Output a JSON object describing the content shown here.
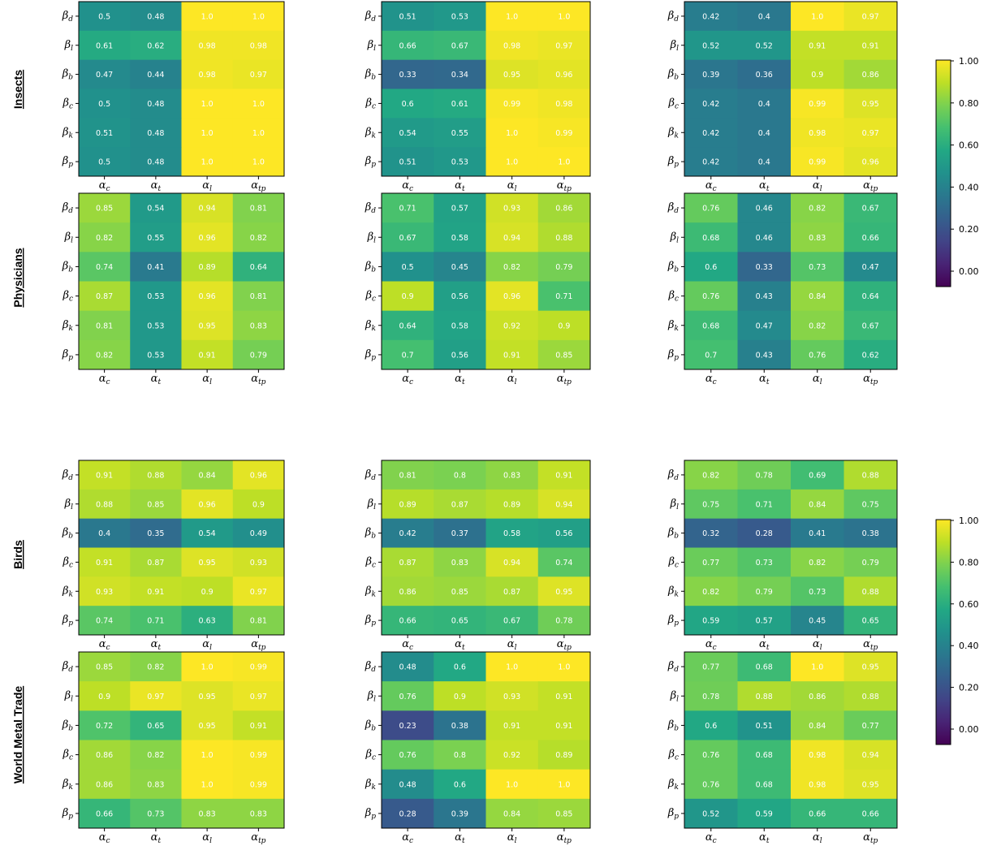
{
  "row_titles": [
    "Insects",
    "Physicians",
    "Birds",
    "World Metal Trade"
  ],
  "colorbar": {
    "colormap": "viridis",
    "range": [
      0,
      1
    ],
    "ticks": [
      "0.00",
      "0.20",
      "0.40",
      "0.60",
      "0.80",
      "1.00"
    ]
  },
  "chart_data": {
    "type": "heatmap",
    "layout": "4 datasets x 3 heatmaps",
    "x_ticks": [
      "α_c",
      "α_t",
      "α_l",
      "α_tp"
    ],
    "y_ticks": [
      "β_d",
      "β_l",
      "β_b",
      "β_c",
      "β_k",
      "β_p"
    ],
    "zlim": [
      0,
      1
    ],
    "panels": [
      {
        "dataset": "Insects",
        "column": 1,
        "values": [
          [
            "0.5",
            "0.48",
            "1.0",
            "1.0"
          ],
          [
            "0.61",
            "0.62",
            "0.98",
            "0.98"
          ],
          [
            "0.47",
            "0.44",
            "0.98",
            "0.97"
          ],
          [
            "0.5",
            "0.48",
            "1.0",
            "1.0"
          ],
          [
            "0.51",
            "0.48",
            "1.0",
            "1.0"
          ],
          [
            "0.5",
            "0.48",
            "1.0",
            "1.0"
          ]
        ]
      },
      {
        "dataset": "Insects",
        "column": 2,
        "values": [
          [
            "0.51",
            "0.53",
            "1.0",
            "1.0"
          ],
          [
            "0.66",
            "0.67",
            "0.98",
            "0.97"
          ],
          [
            "0.33",
            "0.34",
            "0.95",
            "0.96"
          ],
          [
            "0.6",
            "0.61",
            "0.99",
            "0.98"
          ],
          [
            "0.54",
            "0.55",
            "1.0",
            "0.99"
          ],
          [
            "0.51",
            "0.53",
            "1.0",
            "1.0"
          ]
        ]
      },
      {
        "dataset": "Insects",
        "column": 3,
        "values": [
          [
            "0.42",
            "0.4",
            "1.0",
            "0.97"
          ],
          [
            "0.52",
            "0.52",
            "0.91",
            "0.91"
          ],
          [
            "0.39",
            "0.36",
            "0.9",
            "0.86"
          ],
          [
            "0.42",
            "0.4",
            "0.99",
            "0.95"
          ],
          [
            "0.42",
            "0.4",
            "0.98",
            "0.97"
          ],
          [
            "0.42",
            "0.4",
            "0.99",
            "0.96"
          ]
        ]
      },
      {
        "dataset": "Physicians",
        "column": 1,
        "values": [
          [
            "0.85",
            "0.54",
            "0.94",
            "0.81"
          ],
          [
            "0.82",
            "0.55",
            "0.96",
            "0.82"
          ],
          [
            "0.74",
            "0.41",
            "0.89",
            "0.64"
          ],
          [
            "0.87",
            "0.53",
            "0.96",
            "0.81"
          ],
          [
            "0.81",
            "0.53",
            "0.95",
            "0.83"
          ],
          [
            "0.82",
            "0.53",
            "0.91",
            "0.79"
          ]
        ]
      },
      {
        "dataset": "Physicians",
        "column": 2,
        "values": [
          [
            "0.71",
            "0.57",
            "0.93",
            "0.86"
          ],
          [
            "0.67",
            "0.58",
            "0.94",
            "0.88"
          ],
          [
            "0.5",
            "0.45",
            "0.82",
            "0.79"
          ],
          [
            "0.9",
            "0.56",
            "0.96",
            "0.71"
          ],
          [
            "0.64",
            "0.58",
            "0.92",
            "0.9"
          ],
          [
            "0.7",
            "0.56",
            "0.91",
            "0.85"
          ]
        ]
      },
      {
        "dataset": "Physicians",
        "column": 3,
        "values": [
          [
            "0.76",
            "0.46",
            "0.82",
            "0.67"
          ],
          [
            "0.68",
            "0.46",
            "0.83",
            "0.66"
          ],
          [
            "0.6",
            "0.33",
            "0.73",
            "0.47"
          ],
          [
            "0.76",
            "0.43",
            "0.84",
            "0.64"
          ],
          [
            "0.68",
            "0.47",
            "0.82",
            "0.67"
          ],
          [
            "0.7",
            "0.43",
            "0.76",
            "0.62"
          ]
        ]
      },
      {
        "dataset": "Birds",
        "column": 1,
        "values": [
          [
            "0.91",
            "0.88",
            "0.84",
            "0.96"
          ],
          [
            "0.88",
            "0.85",
            "0.96",
            "0.9"
          ],
          [
            "0.4",
            "0.35",
            "0.54",
            "0.49"
          ],
          [
            "0.91",
            "0.87",
            "0.95",
            "0.93"
          ],
          [
            "0.93",
            "0.91",
            "0.9",
            "0.97"
          ],
          [
            "0.74",
            "0.71",
            "0.63",
            "0.81"
          ]
        ]
      },
      {
        "dataset": "Birds",
        "column": 2,
        "values": [
          [
            "0.81",
            "0.8",
            "0.83",
            "0.91"
          ],
          [
            "0.89",
            "0.87",
            "0.89",
            "0.94"
          ],
          [
            "0.42",
            "0.37",
            "0.58",
            "0.56"
          ],
          [
            "0.87",
            "0.83",
            "0.94",
            "0.74"
          ],
          [
            "0.86",
            "0.85",
            "0.87",
            "0.95"
          ],
          [
            "0.66",
            "0.65",
            "0.67",
            "0.78"
          ]
        ]
      },
      {
        "dataset": "Birds",
        "column": 3,
        "values": [
          [
            "0.82",
            "0.78",
            "0.69",
            "0.88"
          ],
          [
            "0.75",
            "0.71",
            "0.84",
            "0.75"
          ],
          [
            "0.32",
            "0.28",
            "0.41",
            "0.38"
          ],
          [
            "0.77",
            "0.73",
            "0.82",
            "0.79"
          ],
          [
            "0.82",
            "0.79",
            "0.73",
            "0.88"
          ],
          [
            "0.59",
            "0.57",
            "0.45",
            "0.65"
          ]
        ]
      },
      {
        "dataset": "World Metal Trade",
        "column": 1,
        "values": [
          [
            "0.85",
            "0.82",
            "1.0",
            "0.99"
          ],
          [
            "0.9",
            "0.97",
            "0.95",
            "0.97"
          ],
          [
            "0.72",
            "0.65",
            "0.95",
            "0.91"
          ],
          [
            "0.86",
            "0.82",
            "1.0",
            "0.99"
          ],
          [
            "0.86",
            "0.83",
            "1.0",
            "0.99"
          ],
          [
            "0.66",
            "0.73",
            "0.83",
            "0.83"
          ]
        ]
      },
      {
        "dataset": "World Metal Trade",
        "column": 2,
        "values": [
          [
            "0.48",
            "0.6",
            "1.0",
            "1.0"
          ],
          [
            "0.76",
            "0.9",
            "0.93",
            "0.91"
          ],
          [
            "0.23",
            "0.38",
            "0.91",
            "0.91"
          ],
          [
            "0.76",
            "0.8",
            "0.92",
            "0.89"
          ],
          [
            "0.48",
            "0.6",
            "1.0",
            "1.0"
          ],
          [
            "0.28",
            "0.39",
            "0.84",
            "0.85"
          ]
        ]
      },
      {
        "dataset": "World Metal Trade",
        "column": 3,
        "values": [
          [
            "0.77",
            "0.68",
            "1.0",
            "0.95"
          ],
          [
            "0.78",
            "0.88",
            "0.86",
            "0.88"
          ],
          [
            "0.6",
            "0.51",
            "0.84",
            "0.77"
          ],
          [
            "0.76",
            "0.68",
            "0.98",
            "0.94"
          ],
          [
            "0.76",
            "0.68",
            "0.98",
            "0.95"
          ],
          [
            "0.52",
            "0.59",
            "0.66",
            "0.66"
          ]
        ]
      }
    ]
  }
}
